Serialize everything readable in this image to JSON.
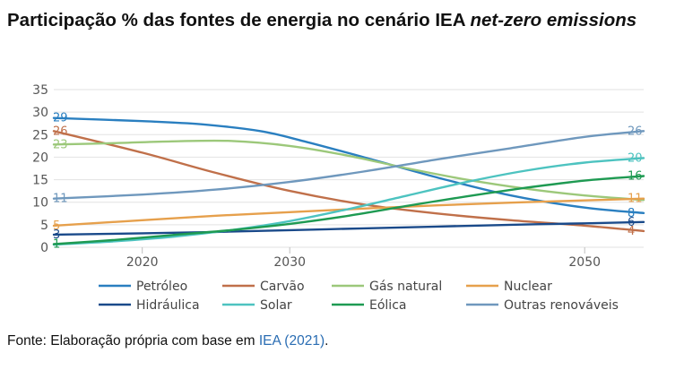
{
  "title": {
    "main": "Participação % das fontes de energia no cenário IEA ",
    "italic": "net-zero emissions"
  },
  "source": {
    "prefix": "Fonte: Elaboração própria com base em ",
    "link": "IEA (2021)",
    "suffix": "."
  },
  "chart_data": {
    "type": "line",
    "title": "Participação % das fontes de energia no cenário IEA net-zero emissions",
    "xlabel": "",
    "ylabel": "",
    "xlim": [
      2014,
      2054
    ],
    "ylim": [
      0,
      35
    ],
    "x_ticks": [
      "2020",
      "2030",
      "2050"
    ],
    "y_ticks": [
      "35",
      "30",
      "25",
      "20",
      "15",
      "10",
      "5",
      "0"
    ],
    "grid": true,
    "legend_position": "bottom",
    "series": [
      {
        "name": "Petróleo",
        "color": "#2a7fc0",
        "start_label": "29",
        "end_label": "8",
        "points": [
          [
            2014,
            28.7
          ],
          [
            2020,
            28.0
          ],
          [
            2024,
            27.3
          ],
          [
            2028,
            25.8
          ],
          [
            2031,
            23.5
          ],
          [
            2035,
            20.0
          ],
          [
            2040,
            15.5
          ],
          [
            2045,
            11.5
          ],
          [
            2050,
            8.8
          ],
          [
            2054,
            7.6
          ]
        ]
      },
      {
        "name": "Carvão",
        "color": "#c0704a",
        "start_label": "26",
        "end_label": "4",
        "points": [
          [
            2014,
            25.8
          ],
          [
            2020,
            21.0
          ],
          [
            2025,
            16.5
          ],
          [
            2030,
            12.5
          ],
          [
            2035,
            9.5
          ],
          [
            2040,
            7.5
          ],
          [
            2045,
            6.0
          ],
          [
            2050,
            4.8
          ],
          [
            2054,
            3.6
          ]
        ]
      },
      {
        "name": "Gás natural",
        "color": "#9cc87a",
        "start_label": "23",
        "end_label": "",
        "points": [
          [
            2014,
            22.8
          ],
          [
            2018,
            23.1
          ],
          [
            2022,
            23.5
          ],
          [
            2026,
            23.6
          ],
          [
            2030,
            22.5
          ],
          [
            2034,
            20.3
          ],
          [
            2038,
            17.5
          ],
          [
            2042,
            15.0
          ],
          [
            2046,
            13.0
          ],
          [
            2050,
            11.5
          ],
          [
            2054,
            10.5
          ]
        ]
      },
      {
        "name": "Nuclear",
        "color": "#e6a04c",
        "start_label": "5",
        "end_label": "11",
        "points": [
          [
            2014,
            4.8
          ],
          [
            2020,
            6.0
          ],
          [
            2025,
            7.0
          ],
          [
            2030,
            7.8
          ],
          [
            2035,
            8.6
          ],
          [
            2040,
            9.3
          ],
          [
            2045,
            9.9
          ],
          [
            2050,
            10.4
          ],
          [
            2054,
            10.8
          ]
        ]
      },
      {
        "name": "Hidráulica",
        "color": "#1a4a8a",
        "start_label": "3",
        "end_label": "6",
        "points": [
          [
            2014,
            2.8
          ],
          [
            2020,
            3.1
          ],
          [
            2025,
            3.4
          ],
          [
            2030,
            3.8
          ],
          [
            2035,
            4.2
          ],
          [
            2040,
            4.6
          ],
          [
            2045,
            5.0
          ],
          [
            2050,
            5.3
          ],
          [
            2054,
            5.6
          ]
        ]
      },
      {
        "name": "Solar",
        "color": "#4dc3c0",
        "start_label": "",
        "end_label": "20",
        "points": [
          [
            2014,
            0.6
          ],
          [
            2018,
            1.3
          ],
          [
            2022,
            2.3
          ],
          [
            2026,
            3.8
          ],
          [
            2030,
            5.8
          ],
          [
            2034,
            8.5
          ],
          [
            2038,
            11.5
          ],
          [
            2042,
            14.5
          ],
          [
            2046,
            17.0
          ],
          [
            2050,
            18.8
          ],
          [
            2054,
            19.8
          ]
        ]
      },
      {
        "name": "Eólica",
        "color": "#1e9a52",
        "start_label": "1",
        "end_label": "16",
        "points": [
          [
            2014,
            0.7
          ],
          [
            2018,
            1.6
          ],
          [
            2022,
            2.7
          ],
          [
            2026,
            3.8
          ],
          [
            2030,
            5.2
          ],
          [
            2034,
            7.0
          ],
          [
            2038,
            9.2
          ],
          [
            2042,
            11.3
          ],
          [
            2046,
            13.2
          ],
          [
            2050,
            14.8
          ],
          [
            2054,
            15.8
          ]
        ]
      },
      {
        "name": "Outras renováveis",
        "color": "#6f98bd",
        "start_label": "11",
        "end_label": "26",
        "points": [
          [
            2014,
            10.8
          ],
          [
            2020,
            11.7
          ],
          [
            2025,
            12.8
          ],
          [
            2030,
            14.5
          ],
          [
            2035,
            16.8
          ],
          [
            2040,
            19.5
          ],
          [
            2045,
            22.0
          ],
          [
            2050,
            24.5
          ],
          [
            2054,
            25.8
          ]
        ]
      }
    ]
  }
}
